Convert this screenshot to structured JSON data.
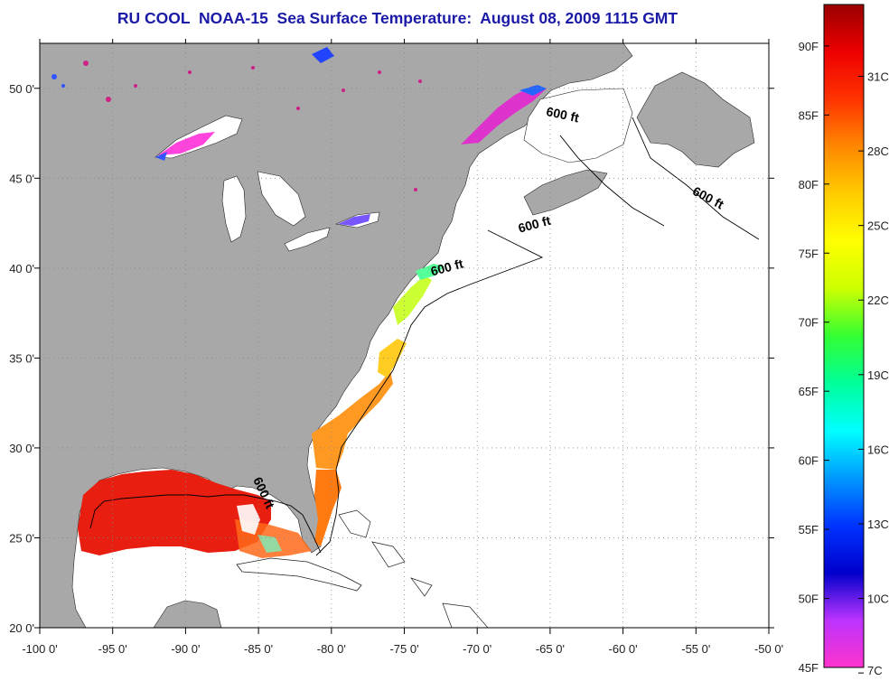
{
  "title": "RU COOL  NOAA-15  Sea Surface Temperature:  August 08, 2009 1115 GMT",
  "map": {
    "lon_range": [
      -100,
      -50
    ],
    "lat_range": [
      20,
      52.5
    ],
    "lon_ticks": [
      {
        "value": -100,
        "label": "-100 0'"
      },
      {
        "value": -95,
        "label": "-95 0'"
      },
      {
        "value": -90,
        "label": "-90 0'"
      },
      {
        "value": -85,
        "label": "-85 0'"
      },
      {
        "value": -80,
        "label": "-80 0'"
      },
      {
        "value": -75,
        "label": "-75 0'"
      },
      {
        "value": -70,
        "label": "-70 0'"
      },
      {
        "value": -65,
        "label": "-65 0'"
      },
      {
        "value": -60,
        "label": "-60 0'"
      },
      {
        "value": -55,
        "label": "-55 0'"
      },
      {
        "value": -50,
        "label": "-50 0'"
      }
    ],
    "lat_ticks": [
      {
        "value": 20,
        "label": "20 0'"
      },
      {
        "value": 25,
        "label": "25 0'"
      },
      {
        "value": 30,
        "label": "30 0'"
      },
      {
        "value": 35,
        "label": "35 0'"
      },
      {
        "value": 40,
        "label": "40 0'"
      },
      {
        "value": 45,
        "label": "45 0'"
      },
      {
        "value": 50,
        "label": "50 0'"
      }
    ],
    "isobath_labels": [
      {
        "text": "600 ft",
        "lon": -64.2,
        "lat": 48.3,
        "rotate": 12
      },
      {
        "text": "600 ft",
        "lon": -54.3,
        "lat": 43.7,
        "rotate": 28
      },
      {
        "text": "600 ft",
        "lon": -66.0,
        "lat": 42.2,
        "rotate": -15
      },
      {
        "text": "600 ft",
        "lon": -72.0,
        "lat": 39.8,
        "rotate": -15
      },
      {
        "text": "600 ft",
        "lon": -84.9,
        "lat": 27.4,
        "rotate": 65
      }
    ],
    "colors": {
      "land": "#a8a8a8",
      "water": "#ffffff",
      "grid": "#888888"
    }
  },
  "colorbar": {
    "fahrenheit_labels": [
      {
        "value": 45,
        "label": "45F"
      },
      {
        "value": 50,
        "label": "50F"
      },
      {
        "value": 55,
        "label": "55F"
      },
      {
        "value": 60,
        "label": "60F"
      },
      {
        "value": 65,
        "label": "65F"
      },
      {
        "value": 70,
        "label": "70F"
      },
      {
        "value": 75,
        "label": "75F"
      },
      {
        "value": 80,
        "label": "80F"
      },
      {
        "value": 85,
        "label": "85F"
      },
      {
        "value": 90,
        "label": "90F"
      }
    ],
    "celsius_labels": [
      {
        "value": 7,
        "label": "7C"
      },
      {
        "value": 10,
        "label": "10C"
      },
      {
        "value": 13,
        "label": "13C"
      },
      {
        "value": 16,
        "label": "16C"
      },
      {
        "value": 19,
        "label": "19C"
      },
      {
        "value": 22,
        "label": "22C"
      },
      {
        "value": 25,
        "label": "25C"
      },
      {
        "value": 28,
        "label": "28C"
      },
      {
        "value": 31,
        "label": "31C"
      }
    ],
    "range_f": [
      45,
      93
    ],
    "colors": [
      "#ff33cc",
      "#bb33ff",
      "#0000cc",
      "#0033ff",
      "#0099ff",
      "#00ffff",
      "#00ff99",
      "#33ff33",
      "#ccff00",
      "#ffff00",
      "#ffcc00",
      "#ff8800",
      "#ff3300",
      "#ee0000",
      "#990000"
    ]
  }
}
